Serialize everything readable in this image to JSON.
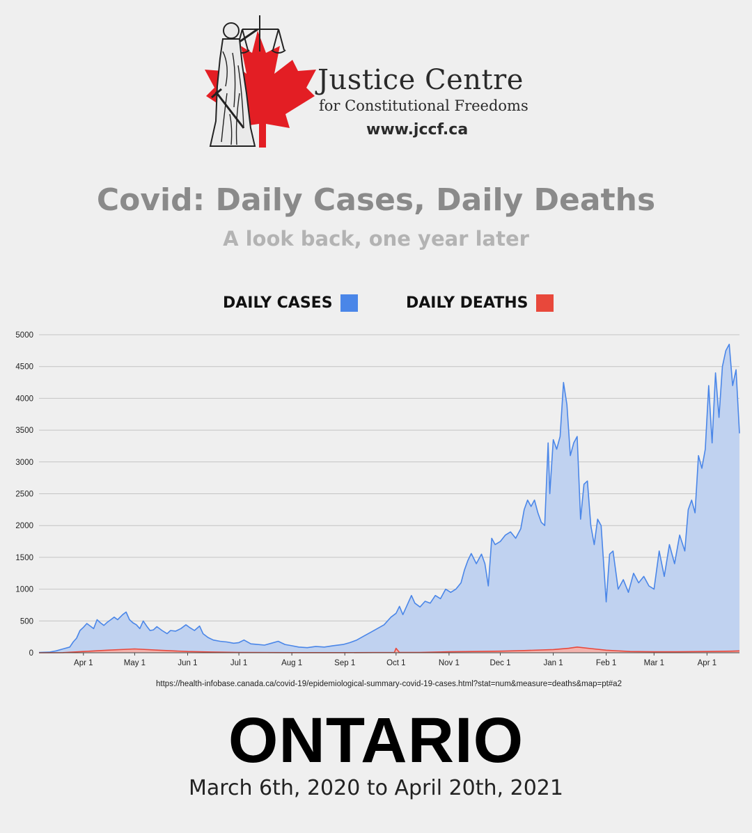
{
  "logo": {
    "name": "Justice Centre",
    "subtitle": "for Constitutional Freedoms",
    "url": "www.jccf.ca"
  },
  "header": {
    "title": "Covid: Daily Cases, Daily Deaths",
    "subtitle": "A look back, one year later"
  },
  "legend": {
    "cases_label": "DAILY CASES",
    "deaths_label": "DAILY DEATHS"
  },
  "colors": {
    "cases_line": "#4a86e8",
    "cases_fill": "#c0d2f0",
    "deaths_line": "#e8483b",
    "maple_red": "#e31e24"
  },
  "chart_data": {
    "type": "area",
    "x_start": "2020-03-06",
    "x_end": "2021-04-20",
    "ylim": [
      0,
      5000
    ],
    "yticks": [
      0,
      500,
      1000,
      1500,
      2000,
      2500,
      3000,
      3500,
      4000,
      4500,
      5000
    ],
    "grid": true,
    "xticks": [
      {
        "date": "2020-04-01",
        "label": "Apr 1"
      },
      {
        "date": "2020-05-01",
        "label": "May 1"
      },
      {
        "date": "2020-06-01",
        "label": "Jun 1"
      },
      {
        "date": "2020-07-01",
        "label": "Jul 1"
      },
      {
        "date": "2020-08-01",
        "label": "Aug 1"
      },
      {
        "date": "2020-09-01",
        "label": "Sep 1"
      },
      {
        "date": "2020-10-01",
        "label": "Oct 1"
      },
      {
        "date": "2020-11-01",
        "label": "Nov 1"
      },
      {
        "date": "2020-12-01",
        "label": "Dec 1"
      },
      {
        "date": "2021-01-01",
        "label": "Jan 1"
      },
      {
        "date": "2021-02-01",
        "label": "Feb 1"
      },
      {
        "date": "2021-03-01",
        "label": "Mar 1"
      },
      {
        "date": "2021-04-01",
        "label": "Apr 1"
      }
    ],
    "series": [
      {
        "name": "DAILY CASES",
        "points": [
          [
            "2020-03-06",
            5
          ],
          [
            "2020-03-12",
            10
          ],
          [
            "2020-03-16",
            30
          ],
          [
            "2020-03-20",
            60
          ],
          [
            "2020-03-24",
            90
          ],
          [
            "2020-03-26",
            170
          ],
          [
            "2020-03-28",
            230
          ],
          [
            "2020-03-30",
            350
          ],
          [
            "2020-04-01",
            400
          ],
          [
            "2020-04-03",
            460
          ],
          [
            "2020-04-05",
            420
          ],
          [
            "2020-04-07",
            380
          ],
          [
            "2020-04-09",
            520
          ],
          [
            "2020-04-11",
            470
          ],
          [
            "2020-04-13",
            430
          ],
          [
            "2020-04-15",
            480
          ],
          [
            "2020-04-17",
            520
          ],
          [
            "2020-04-19",
            560
          ],
          [
            "2020-04-21",
            520
          ],
          [
            "2020-04-24",
            600
          ],
          [
            "2020-04-26",
            640
          ],
          [
            "2020-04-28",
            520
          ],
          [
            "2020-04-30",
            470
          ],
          [
            "2020-05-02",
            440
          ],
          [
            "2020-05-04",
            380
          ],
          [
            "2020-05-06",
            500
          ],
          [
            "2020-05-08",
            420
          ],
          [
            "2020-05-10",
            350
          ],
          [
            "2020-05-12",
            360
          ],
          [
            "2020-05-14",
            410
          ],
          [
            "2020-05-17",
            350
          ],
          [
            "2020-05-20",
            300
          ],
          [
            "2020-05-22",
            350
          ],
          [
            "2020-05-25",
            340
          ],
          [
            "2020-05-28",
            380
          ],
          [
            "2020-05-31",
            440
          ],
          [
            "2020-06-02",
            400
          ],
          [
            "2020-06-05",
            350
          ],
          [
            "2020-06-08",
            420
          ],
          [
            "2020-06-10",
            300
          ],
          [
            "2020-06-13",
            240
          ],
          [
            "2020-06-16",
            200
          ],
          [
            "2020-06-20",
            180
          ],
          [
            "2020-06-24",
            170
          ],
          [
            "2020-06-28",
            150
          ],
          [
            "2020-07-01",
            160
          ],
          [
            "2020-07-04",
            200
          ],
          [
            "2020-07-08",
            140
          ],
          [
            "2020-07-12",
            130
          ],
          [
            "2020-07-16",
            120
          ],
          [
            "2020-07-20",
            150
          ],
          [
            "2020-07-24",
            180
          ],
          [
            "2020-07-28",
            130
          ],
          [
            "2020-08-01",
            110
          ],
          [
            "2020-08-05",
            90
          ],
          [
            "2020-08-10",
            80
          ],
          [
            "2020-08-15",
            100
          ],
          [
            "2020-08-20",
            90
          ],
          [
            "2020-08-25",
            110
          ],
          [
            "2020-08-31",
            130
          ],
          [
            "2020-09-04",
            160
          ],
          [
            "2020-09-08",
            200
          ],
          [
            "2020-09-12",
            260
          ],
          [
            "2020-09-16",
            320
          ],
          [
            "2020-09-20",
            380
          ],
          [
            "2020-09-24",
            440
          ],
          [
            "2020-09-28",
            560
          ],
          [
            "2020-10-01",
            620
          ],
          [
            "2020-10-03",
            730
          ],
          [
            "2020-10-05",
            600
          ],
          [
            "2020-10-08",
            780
          ],
          [
            "2020-10-10",
            900
          ],
          [
            "2020-10-12",
            780
          ],
          [
            "2020-10-15",
            720
          ],
          [
            "2020-10-18",
            810
          ],
          [
            "2020-10-21",
            780
          ],
          [
            "2020-10-24",
            900
          ],
          [
            "2020-10-27",
            850
          ],
          [
            "2020-10-30",
            1000
          ],
          [
            "2020-11-02",
            950
          ],
          [
            "2020-11-05",
            1000
          ],
          [
            "2020-11-08",
            1100
          ],
          [
            "2020-11-10",
            1300
          ],
          [
            "2020-11-12",
            1450
          ],
          [
            "2020-11-14",
            1560
          ],
          [
            "2020-11-17",
            1400
          ],
          [
            "2020-11-20",
            1550
          ],
          [
            "2020-11-22",
            1400
          ],
          [
            "2020-11-24",
            1050
          ],
          [
            "2020-11-26",
            1800
          ],
          [
            "2020-11-28",
            1700
          ],
          [
            "2020-12-01",
            1750
          ],
          [
            "2020-12-04",
            1850
          ],
          [
            "2020-12-07",
            1900
          ],
          [
            "2020-12-10",
            1800
          ],
          [
            "2020-12-13",
            1950
          ],
          [
            "2020-12-15",
            2250
          ],
          [
            "2020-12-17",
            2400
          ],
          [
            "2020-12-19",
            2300
          ],
          [
            "2020-12-21",
            2400
          ],
          [
            "2020-12-23",
            2200
          ],
          [
            "2020-12-25",
            2050
          ],
          [
            "2020-12-27",
            2000
          ],
          [
            "2020-12-29",
            3300
          ],
          [
            "2020-12-30",
            2500
          ],
          [
            "2021-01-01",
            3350
          ],
          [
            "2021-01-03",
            3200
          ],
          [
            "2021-01-05",
            3400
          ],
          [
            "2021-01-07",
            4250
          ],
          [
            "2021-01-09",
            3900
          ],
          [
            "2021-01-11",
            3100
          ],
          [
            "2021-01-13",
            3300
          ],
          [
            "2021-01-15",
            3400
          ],
          [
            "2021-01-17",
            2100
          ],
          [
            "2021-01-19",
            2650
          ],
          [
            "2021-01-21",
            2700
          ],
          [
            "2021-01-23",
            2000
          ],
          [
            "2021-01-25",
            1700
          ],
          [
            "2021-01-27",
            2100
          ],
          [
            "2021-01-29",
            2000
          ],
          [
            "2021-02-01",
            800
          ],
          [
            "2021-02-03",
            1550
          ],
          [
            "2021-02-05",
            1600
          ],
          [
            "2021-02-08",
            1000
          ],
          [
            "2021-02-11",
            1150
          ],
          [
            "2021-02-14",
            950
          ],
          [
            "2021-02-17",
            1250
          ],
          [
            "2021-02-20",
            1100
          ],
          [
            "2021-02-23",
            1200
          ],
          [
            "2021-02-26",
            1050
          ],
          [
            "2021-03-01",
            1000
          ],
          [
            "2021-03-04",
            1600
          ],
          [
            "2021-03-07",
            1200
          ],
          [
            "2021-03-10",
            1700
          ],
          [
            "2021-03-13",
            1400
          ],
          [
            "2021-03-16",
            1850
          ],
          [
            "2021-03-19",
            1600
          ],
          [
            "2021-03-21",
            2250
          ],
          [
            "2021-03-23",
            2400
          ],
          [
            "2021-03-25",
            2200
          ],
          [
            "2021-03-27",
            3100
          ],
          [
            "2021-03-29",
            2900
          ],
          [
            "2021-03-31",
            3200
          ],
          [
            "2021-04-02",
            4200
          ],
          [
            "2021-04-04",
            3300
          ],
          [
            "2021-04-06",
            4400
          ],
          [
            "2021-04-08",
            3700
          ],
          [
            "2021-04-10",
            4500
          ],
          [
            "2021-04-12",
            4750
          ],
          [
            "2021-04-14",
            4850
          ],
          [
            "2021-04-16",
            4200
          ],
          [
            "2021-04-18",
            4450
          ],
          [
            "2021-04-20",
            3450
          ]
        ]
      },
      {
        "name": "DAILY DEATHS",
        "points": [
          [
            "2020-03-06",
            0
          ],
          [
            "2020-03-20",
            2
          ],
          [
            "2020-04-01",
            20
          ],
          [
            "2020-04-15",
            40
          ],
          [
            "2020-05-01",
            60
          ],
          [
            "2020-05-15",
            40
          ],
          [
            "2020-06-01",
            20
          ],
          [
            "2020-06-15",
            12
          ],
          [
            "2020-07-01",
            6
          ],
          [
            "2020-08-01",
            2
          ],
          [
            "2020-09-01",
            2
          ],
          [
            "2020-09-30",
            4
          ],
          [
            "2020-10-01",
            70
          ],
          [
            "2020-10-03",
            4
          ],
          [
            "2020-10-15",
            6
          ],
          [
            "2020-11-01",
            15
          ],
          [
            "2020-11-15",
            20
          ],
          [
            "2020-12-01",
            25
          ],
          [
            "2020-12-15",
            35
          ],
          [
            "2021-01-01",
            50
          ],
          [
            "2021-01-10",
            70
          ],
          [
            "2021-01-15",
            90
          ],
          [
            "2021-01-25",
            60
          ],
          [
            "2021-02-01",
            40
          ],
          [
            "2021-02-15",
            20
          ],
          [
            "2021-03-01",
            15
          ],
          [
            "2021-03-15",
            15
          ],
          [
            "2021-04-01",
            20
          ],
          [
            "2021-04-15",
            25
          ],
          [
            "2021-04-20",
            30
          ]
        ]
      }
    ]
  },
  "source": {
    "url": "https://health-infobase.canada.ca/covid-19/epidemiological-summary-covid-19-cases.html?stat=num&measure=deaths&map=pt#a2"
  },
  "footer": {
    "region": "ONTARIO",
    "date_range": "March 6th, 2020 to April 20th, 2021"
  }
}
